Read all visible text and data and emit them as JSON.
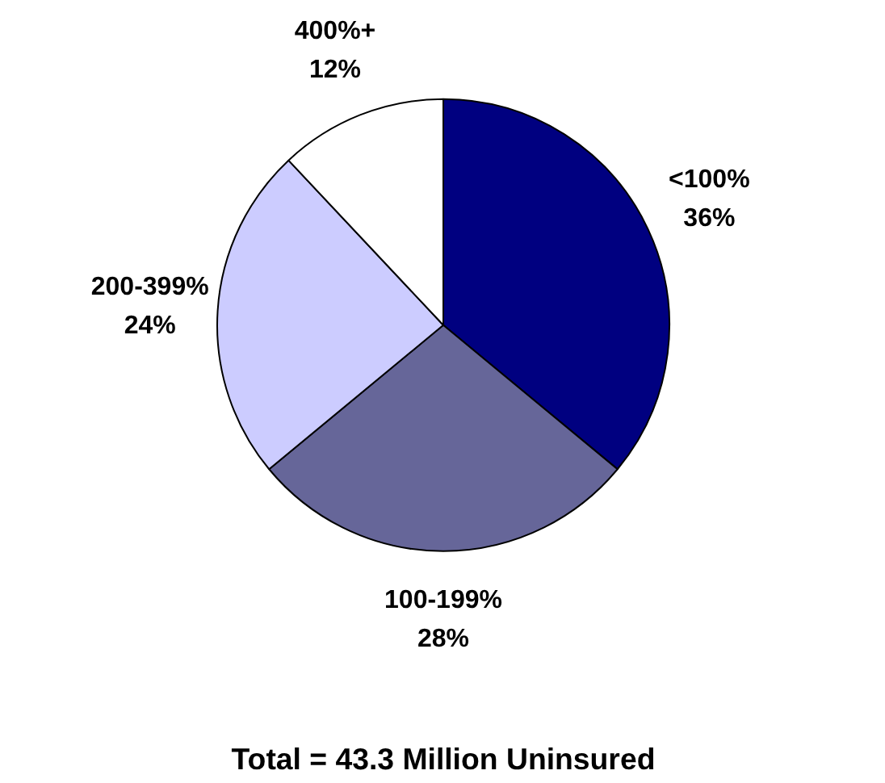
{
  "chart_data": {
    "type": "pie",
    "categories": [
      "<100%",
      "100-199%",
      "200-399%",
      "400%+"
    ],
    "values": [
      36,
      28,
      24,
      12
    ],
    "colors": [
      "#000080",
      "#666699",
      "#ccccff",
      "#ffffff"
    ],
    "value_labels": [
      "36%",
      "28%",
      "24%",
      "12%"
    ],
    "annotations": [
      "Total = 43.3 Million Uninsured"
    ]
  }
}
